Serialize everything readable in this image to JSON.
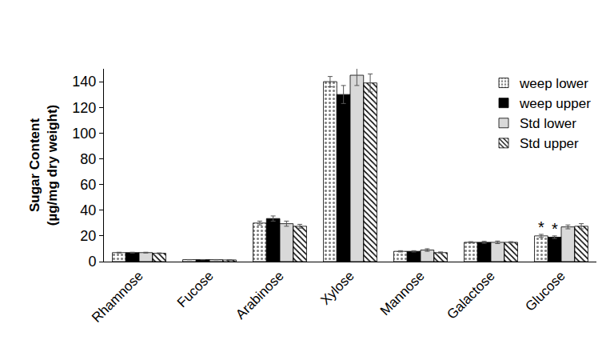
{
  "chart_data": {
    "type": "bar",
    "y_label": "Sugar Content\n(µg/mg dry weight)",
    "categories": [
      "Rhamnose",
      "Fucose",
      "Arabinose",
      "Xylose",
      "Mannose",
      "Galactose",
      "Glucose"
    ],
    "series": [
      {
        "name": "weep lower",
        "color": "#ffffff",
        "values": [
          7,
          1.5,
          30,
          140,
          8,
          15,
          20
        ],
        "errors": [
          0.3,
          0.1,
          1.5,
          4,
          0.5,
          0.5,
          1.2
        ]
      },
      {
        "name": "weep upper",
        "color": "#000000",
        "values": [
          7,
          1.5,
          33.5,
          130,
          8,
          15,
          19
        ],
        "errors": [
          0.3,
          0.1,
          2,
          7,
          0.5,
          0.8,
          1
        ]
      },
      {
        "name": "Std lower",
        "color": "#d9d9d9",
        "values": [
          7,
          1.5,
          29.5,
          145,
          9,
          15,
          27
        ],
        "errors": [
          0.3,
          0.1,
          2,
          8,
          1,
          1,
          1.5
        ]
      },
      {
        "name": "Std upper",
        "color": "#ffffff",
        "values": [
          6.5,
          1.3,
          27.5,
          139,
          7,
          15,
          27.5
        ],
        "errors": [
          0.3,
          0.1,
          1.5,
          7,
          0.5,
          0.5,
          2
        ]
      }
    ],
    "annotations": [
      {
        "text": "*",
        "category": "Glucose",
        "series": "weep lower"
      },
      {
        "text": "*",
        "category": "Glucose",
        "series": "weep upper"
      }
    ],
    "ylim": [
      0,
      150
    ],
    "yticks": [
      0,
      20,
      40,
      60,
      80,
      100,
      120,
      140
    ],
    "grid": false,
    "legend": "upper right"
  }
}
